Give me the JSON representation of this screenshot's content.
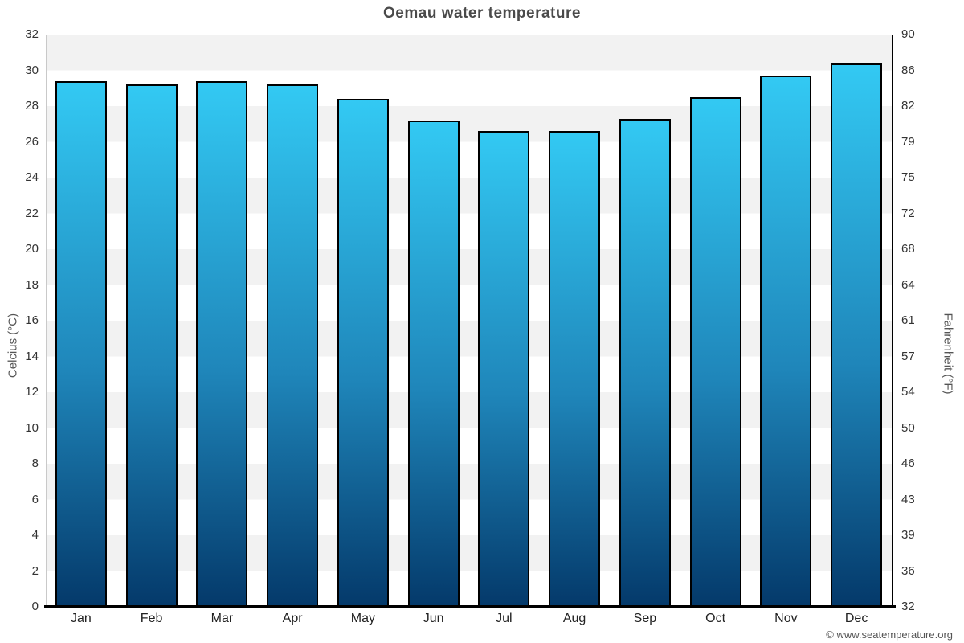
{
  "page": {
    "footer": "© www.seatemperature.org"
  },
  "chart_data": {
    "type": "bar",
    "title": "Oemau water temperature",
    "categories": [
      "Jan",
      "Feb",
      "Mar",
      "Apr",
      "May",
      "Jun",
      "Jul",
      "Aug",
      "Sep",
      "Oct",
      "Nov",
      "Dec"
    ],
    "values": [
      29.4,
      29.2,
      29.4,
      29.2,
      28.4,
      27.2,
      26.6,
      26.6,
      27.3,
      28.5,
      29.7,
      30.4
    ],
    "xlabel": "",
    "ylabel_left": "Celcius (°C)",
    "ylabel_right": "Fahrenheit (°F)",
    "ylim": [
      0,
      32
    ],
    "yticks_celsius": [
      32,
      30,
      28,
      26,
      24,
      22,
      20,
      18,
      16,
      14,
      12,
      10,
      8,
      6,
      4,
      2,
      0
    ],
    "yticks_fahrenheit": [
      90,
      86,
      82,
      79,
      75,
      72,
      68,
      64,
      61,
      57,
      54,
      50,
      46,
      43,
      39,
      36,
      32
    ],
    "grid": "alternating horizontal bands",
    "legend": "none",
    "colors": {
      "bar_gradient_top": "#33c9f3",
      "bar_gradient_bottom": "#04396a",
      "bar_border": "#000000",
      "band_gray": "#f2f2f2",
      "band_white": "#ffffff",
      "axis_line_left": "#c9c9c9",
      "axis_line_right": "#000000",
      "axis_line_bottom": "#000000",
      "title_color": "#4a4a4a",
      "tick_label_color": "#333333",
      "axis_title_color": "#555555",
      "footer_color": "#555555"
    }
  }
}
